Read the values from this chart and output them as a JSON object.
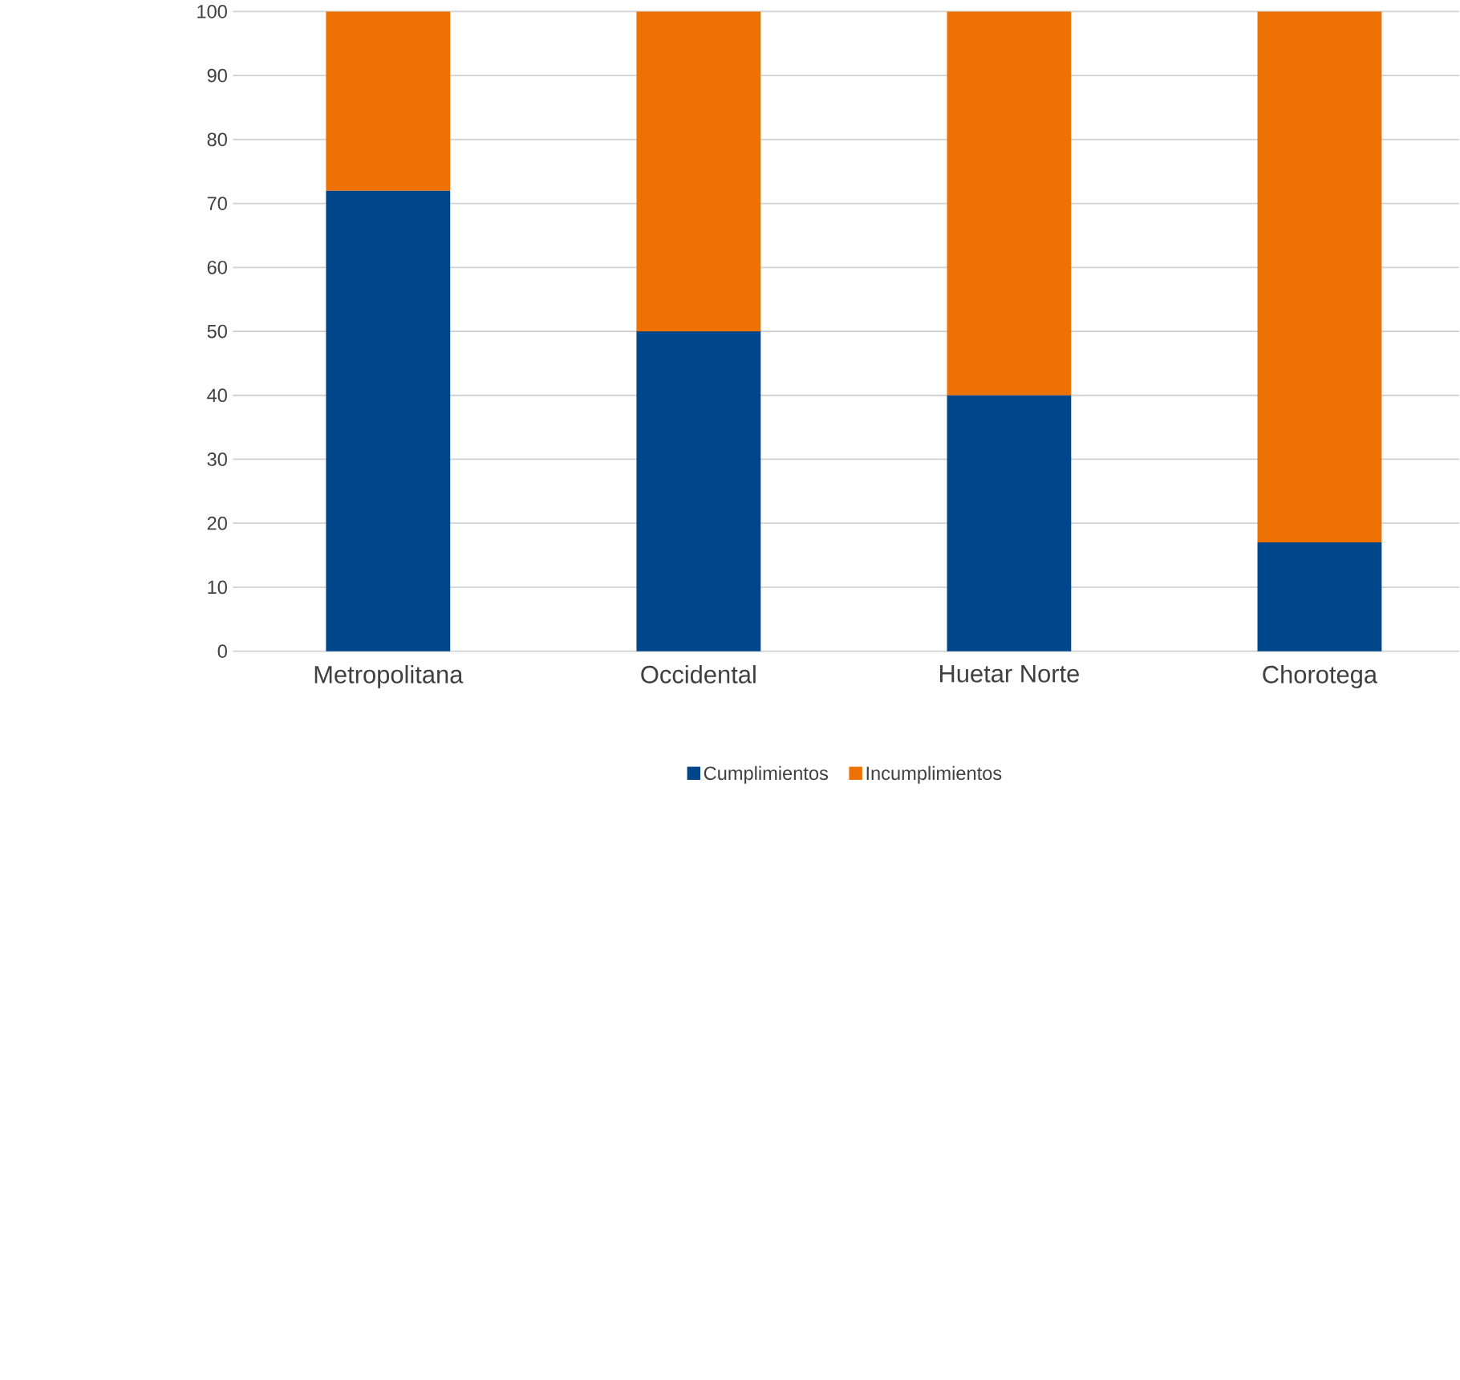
{
  "chart_data": {
    "type": "bar",
    "stacked": true,
    "categories": [
      "Metropolitana",
      "Occidental",
      "Huetar Norte",
      "Chorotega"
    ],
    "series": [
      {
        "name": "Cumplimientos",
        "color": "#00468b",
        "values": [
          72,
          50,
          40,
          17
        ]
      },
      {
        "name": "Incumplimientos",
        "color": "#ee7203",
        "values": [
          28,
          50,
          60,
          83
        ]
      }
    ],
    "ylim": [
      0,
      100
    ],
    "yticks": [
      0,
      10,
      20,
      30,
      40,
      50,
      60,
      70,
      80,
      90,
      100
    ],
    "grid": "y",
    "legend": "bottom"
  }
}
